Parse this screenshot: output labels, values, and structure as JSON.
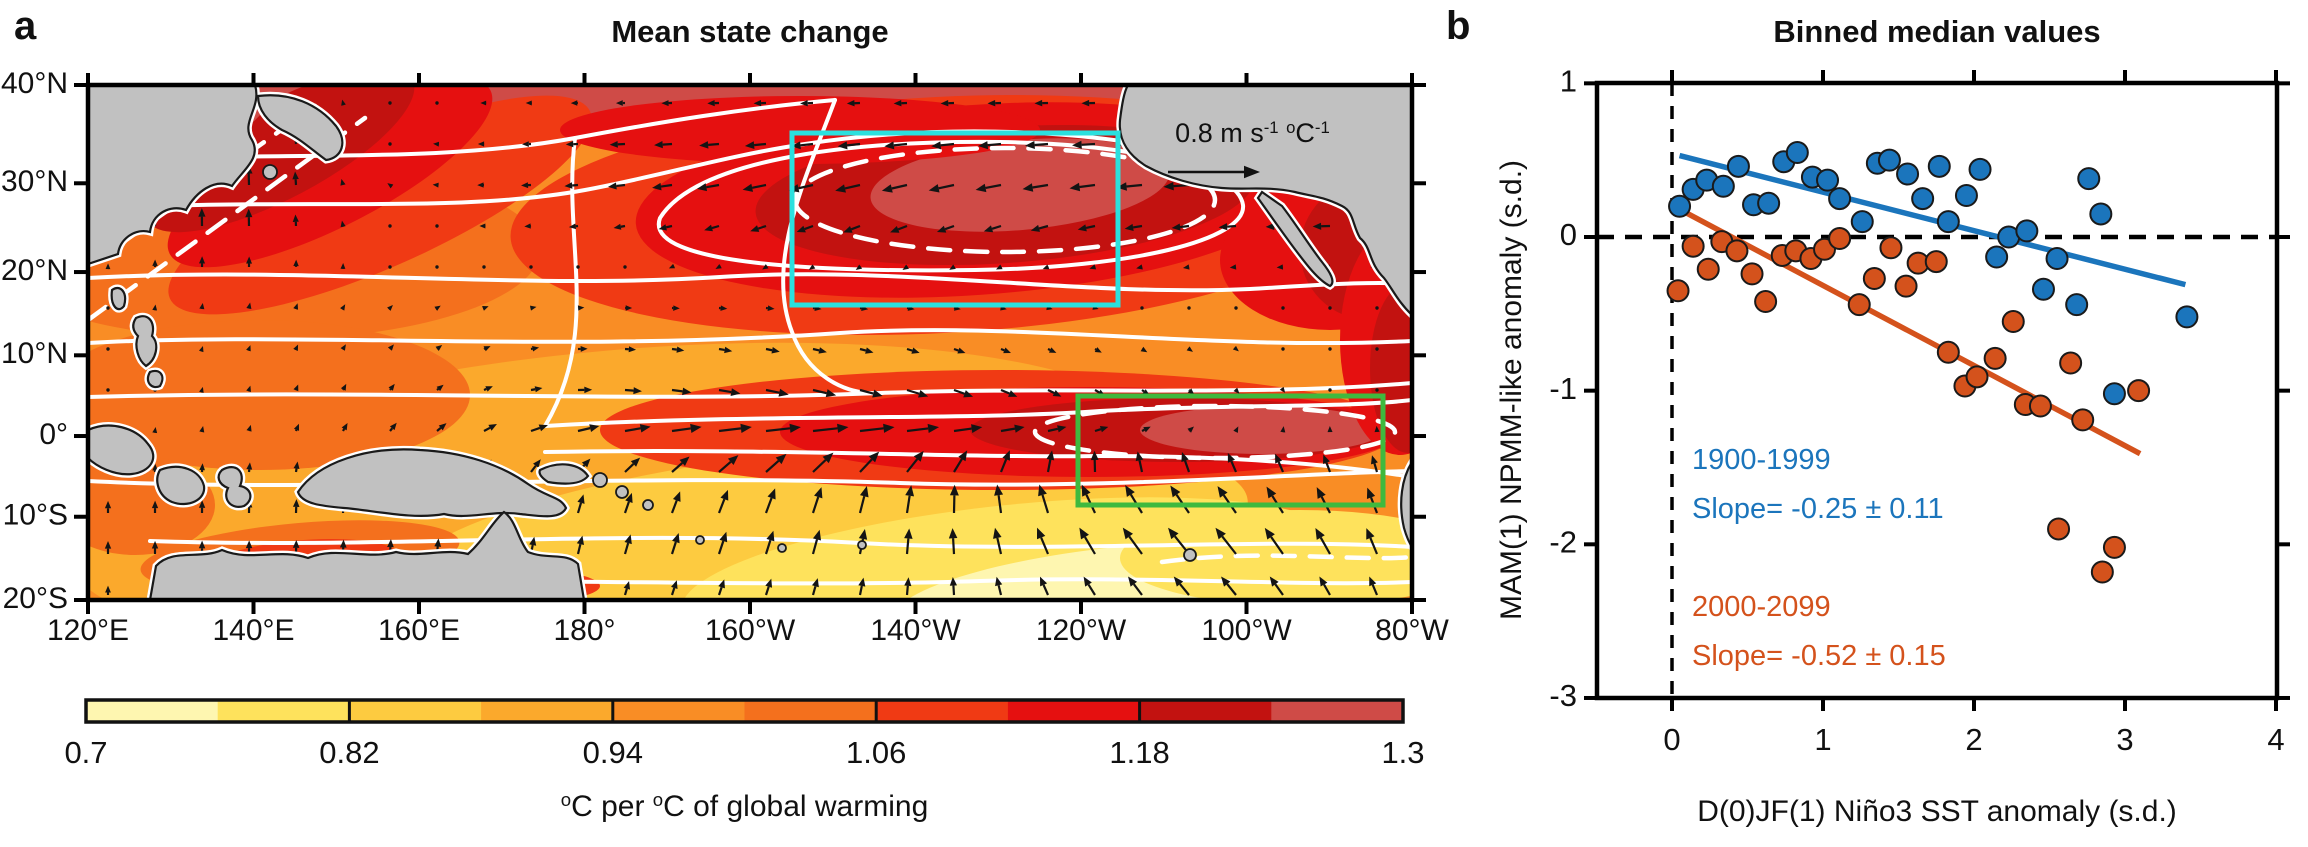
{
  "figure": {
    "panel_a": {
      "label": "a",
      "quiver_scale": {
        "t1": "0.8 m s",
        "s1": "-1",
        "t2": " ",
        "s2": "o",
        "t3": "C",
        "s3": "-1"
      },
      "land_color": "#C1C1C1",
      "contour_color": "#FFFFFF",
      "region_boxes": [
        {
          "name": "cyan-box",
          "color": "#2BE0DE",
          "lon_span": "157°W–117°W",
          "lat_span": "16°N–36°N"
        },
        {
          "name": "green-box",
          "color": "#3FB93E",
          "lon_span": "123°W–87°W",
          "lat_span": "5°N–8°S"
        }
      ],
      "colorbar": {
        "segment_colors": [
          "#FEF6B0",
          "#FEE25C",
          "#FDCB40",
          "#FBA92C",
          "#F98D25",
          "#F4701D",
          "#F03A14",
          "#E51010",
          "#C21210",
          "#CF4B47"
        ],
        "caption": {
          "s1": "o",
          "t1": "C per ",
          "s2": "o",
          "t2": "C of global warming"
        }
      }
    },
    "panel_b": {
      "label": "b"
    }
  },
  "chart_data": [
    {
      "type": "heatmap",
      "title": "Mean state change",
      "value_range": [
        0.7,
        1.3
      ],
      "colorbar_tick_labels": [
        "0.7",
        "0.82",
        "0.94",
        "1.06",
        "1.18",
        "1.3"
      ],
      "units_caption": "°C per °C of global warming",
      "x_tick_labels": [
        "120°E",
        "140°E",
        "160°E",
        "180°",
        "160°W",
        "140°W",
        "120°W",
        "100°W",
        "80°W"
      ],
      "y_tick_labels": [
        "40°N",
        "30°N",
        "20°N",
        "10°N",
        "0°",
        "10°S",
        "20°S"
      ],
      "vector_scale_label": "0.8 m s⁻¹ °C⁻¹",
      "highlight_boxes": [
        {
          "color": "cyan",
          "lon_span": "157°W–117°W",
          "lat_span": "16°N–36°N"
        },
        {
          "color": "green",
          "lon_span": "123°W–87°W",
          "lat_span": "5°N–8°S"
        }
      ]
    },
    {
      "type": "scatter",
      "title": "Binned median values",
      "xlabel": "D(0)JF(1) Niño3 SST anomaly (s.d.)",
      "ylabel": "MAM(1) NPMM-like anomaly (s.d.)",
      "xlim": [
        -0.5,
        4
      ],
      "ylim": [
        -3,
        1
      ],
      "x_ticks": [
        0,
        1,
        2,
        3,
        4
      ],
      "y_ticks": [
        1,
        0,
        -1,
        -2,
        -3
      ],
      "zero_lines": {
        "horizontal_y": 0,
        "vertical_x": 0,
        "style": "dashed"
      },
      "series": [
        {
          "name": "1900-1999",
          "color": "#1B75BC",
          "slope_label": "Slope= -0.25 ± 0.11",
          "trend_line": {
            "x": [
              0.05,
              3.4
            ],
            "y": [
              0.53,
              -0.31
            ]
          },
          "points": [
            [
              0.05,
              0.2
            ],
            [
              0.14,
              0.31
            ],
            [
              0.23,
              0.37
            ],
            [
              0.34,
              0.33
            ],
            [
              0.44,
              0.46
            ],
            [
              0.54,
              0.21
            ],
            [
              0.64,
              0.22
            ],
            [
              0.74,
              0.49
            ],
            [
              0.83,
              0.55
            ],
            [
              0.93,
              0.39
            ],
            [
              1.03,
              0.37
            ],
            [
              1.11,
              0.25
            ],
            [
              1.26,
              0.1
            ],
            [
              1.36,
              0.48
            ],
            [
              1.44,
              0.5
            ],
            [
              1.56,
              0.41
            ],
            [
              1.66,
              0.25
            ],
            [
              1.77,
              0.46
            ],
            [
              1.83,
              0.1
            ],
            [
              1.95,
              0.27
            ],
            [
              2.04,
              0.44
            ],
            [
              2.15,
              -0.13
            ],
            [
              2.23,
              0.0
            ],
            [
              2.35,
              0.04
            ],
            [
              2.46,
              -0.34
            ],
            [
              2.55,
              -0.14
            ],
            [
              2.68,
              -0.44
            ],
            [
              2.76,
              0.38
            ],
            [
              2.84,
              0.15
            ],
            [
              2.93,
              -1.02
            ],
            [
              3.41,
              -0.52
            ]
          ]
        },
        {
          "name": "2000-2099",
          "color": "#D4521C",
          "slope_label": "Slope= -0.52 ± 0.15",
          "trend_line": {
            "x": [
              0.05,
              3.1
            ],
            "y": [
              0.18,
              -1.41
            ]
          },
          "points": [
            [
              0.04,
              -0.35
            ],
            [
              0.14,
              -0.06
            ],
            [
              0.24,
              -0.21
            ],
            [
              0.33,
              -0.03
            ],
            [
              0.43,
              -0.09
            ],
            [
              0.53,
              -0.24
            ],
            [
              0.62,
              -0.42
            ],
            [
              0.73,
              -0.12
            ],
            [
              0.82,
              -0.09
            ],
            [
              0.92,
              -0.14
            ],
            [
              1.01,
              -0.08
            ],
            [
              1.11,
              -0.01
            ],
            [
              1.24,
              -0.44
            ],
            [
              1.34,
              -0.27
            ],
            [
              1.45,
              -0.07
            ],
            [
              1.55,
              -0.32
            ],
            [
              1.63,
              -0.17
            ],
            [
              1.75,
              -0.16
            ],
            [
              1.83,
              -0.75
            ],
            [
              1.94,
              -0.97
            ],
            [
              2.02,
              -0.91
            ],
            [
              2.14,
              -0.79
            ],
            [
              2.26,
              -0.55
            ],
            [
              2.34,
              -1.09
            ],
            [
              2.44,
              -1.1
            ],
            [
              2.56,
              -1.9
            ],
            [
              2.64,
              -0.82
            ],
            [
              2.72,
              -1.19
            ],
            [
              2.85,
              -2.18
            ],
            [
              2.93,
              -2.02
            ],
            [
              3.09,
              -1.0
            ]
          ]
        }
      ],
      "legend_position": "lower-left"
    }
  ]
}
